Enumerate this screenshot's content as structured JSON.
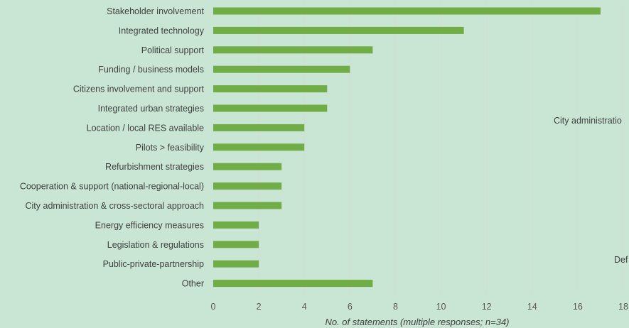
{
  "chart_data": {
    "type": "bar",
    "orientation": "horizontal",
    "categories": [
      "Stakeholder involvement",
      "Integrated technology",
      "Political support",
      "Funding / business models",
      "Citizens involvement and support",
      "Integrated urban strategies",
      "Location / local RES available",
      "Pilots > feasibility",
      "Refurbishment strategies",
      "Cooperation & support (national-regional-local)",
      "City administration & cross-sectoral approach",
      "Energy efficiency measures",
      "Legislation & regulations",
      "Public-private-partnership",
      "Other"
    ],
    "values": [
      17,
      11,
      7,
      6,
      5,
      5,
      4,
      4,
      3,
      3,
      3,
      2,
      2,
      2,
      7
    ],
    "xlabel": "No. of statements (multiple responses; n=34)",
    "ylabel": "",
    "xlim": [
      0,
      18
    ],
    "xticks": [
      0,
      2,
      4,
      6,
      8,
      10,
      12,
      14,
      16,
      18
    ],
    "grid": "vertical",
    "legend": "none",
    "colors": {
      "bar": "#70ad47",
      "grid": "#d9d9d9",
      "background": "#c9e5d3"
    }
  },
  "overflow_text": [
    "City administratio",
    "Def"
  ]
}
